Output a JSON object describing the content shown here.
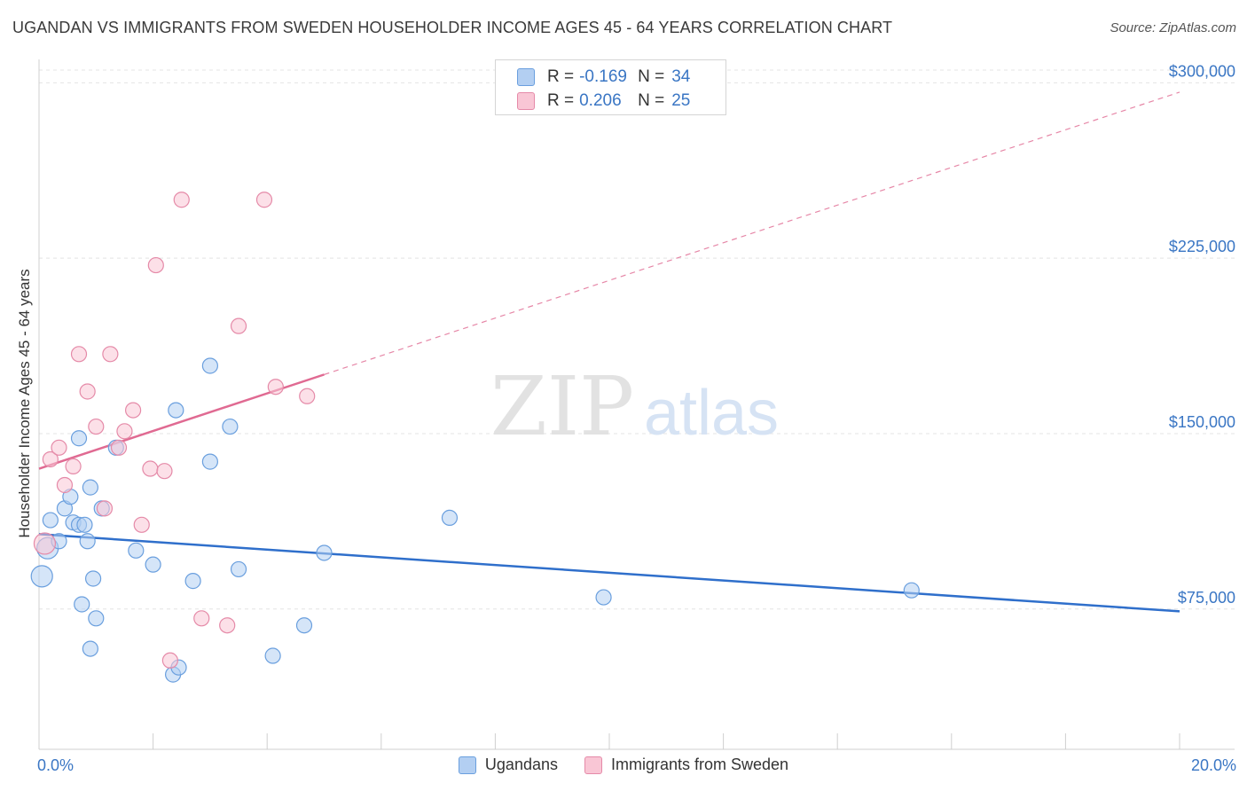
{
  "header": {
    "title": "UGANDAN VS IMMIGRANTS FROM SWEDEN HOUSEHOLDER INCOME AGES 45 - 64 YEARS CORRELATION CHART",
    "source": "Source: ZipAtlas.com"
  },
  "watermark": {
    "zip": "ZIP",
    "atlas": "atlas"
  },
  "legend": {
    "rows": [
      {
        "r_label": "R =",
        "r_value": "-0.169",
        "n_label": "N =",
        "n_value": "34"
      },
      {
        "r_label": "R =",
        "r_value": "0.206",
        "n_label": "N =",
        "n_value": "25"
      }
    ]
  },
  "colors": {
    "ugandans_fill": "#b3cff2",
    "ugandans_stroke": "#6a9fde",
    "ugandans_line": "#2f6fcb",
    "sweden_fill": "#f9c6d5",
    "sweden_stroke": "#e58aa8",
    "sweden_line": "#e06a92",
    "axis_label": "#3a76c4",
    "grid": "#e4e4e4"
  },
  "chart_data": {
    "type": "scatter",
    "title": "UGANDAN VS IMMIGRANTS FROM SWEDEN HOUSEHOLDER INCOME AGES 45 - 64 YEARS CORRELATION CHART",
    "xlabel": "",
    "ylabel": "Householder Income Ages 45 - 64 years",
    "xlim": [
      0,
      20
    ],
    "ylim": [
      15000,
      310000
    ],
    "x_tick_labels": [
      "0.0%",
      "20.0%"
    ],
    "y_ticks": [
      75000,
      150000,
      225000,
      300000
    ],
    "y_tick_labels": [
      "$75,000",
      "$150,000",
      "$225,000",
      "$300,000"
    ],
    "grid": true,
    "legend_placement": "bottom",
    "series": [
      {
        "name": "Ugandans",
        "points": [
          {
            "x": 0.05,
            "y": 89000,
            "big": true
          },
          {
            "x": 0.15,
            "y": 101000,
            "big": true
          },
          {
            "x": 0.2,
            "y": 113000
          },
          {
            "x": 0.35,
            "y": 104000
          },
          {
            "x": 0.45,
            "y": 118000
          },
          {
            "x": 0.55,
            "y": 123000
          },
          {
            "x": 0.6,
            "y": 112000
          },
          {
            "x": 0.7,
            "y": 148000
          },
          {
            "x": 0.75,
            "y": 77000
          },
          {
            "x": 0.7,
            "y": 111000
          },
          {
            "x": 0.8,
            "y": 111000
          },
          {
            "x": 0.85,
            "y": 104000
          },
          {
            "x": 0.95,
            "y": 88000
          },
          {
            "x": 0.9,
            "y": 127000
          },
          {
            "x": 1.0,
            "y": 71000
          },
          {
            "x": 0.9,
            "y": 58000
          },
          {
            "x": 1.1,
            "y": 118000
          },
          {
            "x": 1.35,
            "y": 144000
          },
          {
            "x": 1.7,
            "y": 100000
          },
          {
            "x": 2.0,
            "y": 94000
          },
          {
            "x": 2.35,
            "y": 47000
          },
          {
            "x": 2.45,
            "y": 50000
          },
          {
            "x": 2.4,
            "y": 160000
          },
          {
            "x": 2.7,
            "y": 87000
          },
          {
            "x": 3.0,
            "y": 138000
          },
          {
            "x": 3.0,
            "y": 179000
          },
          {
            "x": 3.35,
            "y": 153000
          },
          {
            "x": 3.5,
            "y": 92000
          },
          {
            "x": 4.1,
            "y": 55000
          },
          {
            "x": 4.65,
            "y": 68000
          },
          {
            "x": 5.0,
            "y": 99000
          },
          {
            "x": 7.2,
            "y": 114000
          },
          {
            "x": 9.9,
            "y": 80000
          },
          {
            "x": 15.3,
            "y": 83000
          }
        ],
        "trend": {
          "x": [
            0,
            20
          ],
          "y": [
            107000,
            74000
          ]
        }
      },
      {
        "name": "Immigrants from Sweden",
        "points": [
          {
            "x": 0.1,
            "y": 103000,
            "big": true
          },
          {
            "x": 0.2,
            "y": 139000
          },
          {
            "x": 0.35,
            "y": 144000
          },
          {
            "x": 0.45,
            "y": 128000
          },
          {
            "x": 0.6,
            "y": 136000
          },
          {
            "x": 0.7,
            "y": 184000
          },
          {
            "x": 0.85,
            "y": 168000
          },
          {
            "x": 1.0,
            "y": 153000
          },
          {
            "x": 1.15,
            "y": 118000
          },
          {
            "x": 1.25,
            "y": 184000
          },
          {
            "x": 1.4,
            "y": 144000
          },
          {
            "x": 1.5,
            "y": 151000
          },
          {
            "x": 1.65,
            "y": 160000
          },
          {
            "x": 1.8,
            "y": 111000
          },
          {
            "x": 1.95,
            "y": 135000
          },
          {
            "x": 2.05,
            "y": 222000
          },
          {
            "x": 2.2,
            "y": 134000
          },
          {
            "x": 2.3,
            "y": 53000
          },
          {
            "x": 2.5,
            "y": 250000
          },
          {
            "x": 2.85,
            "y": 71000
          },
          {
            "x": 3.3,
            "y": 68000
          },
          {
            "x": 3.5,
            "y": 196000
          },
          {
            "x": 3.95,
            "y": 250000
          },
          {
            "x": 4.15,
            "y": 170000
          },
          {
            "x": 4.7,
            "y": 166000
          }
        ],
        "trend": {
          "x": [
            0,
            20
          ],
          "y": [
            135000,
            296000
          ],
          "solid_until_x": 5.0
        }
      }
    ]
  },
  "bottom_legend": {
    "items": [
      {
        "label": "Ugandans"
      },
      {
        "label": "Immigrants from Sweden"
      }
    ]
  }
}
